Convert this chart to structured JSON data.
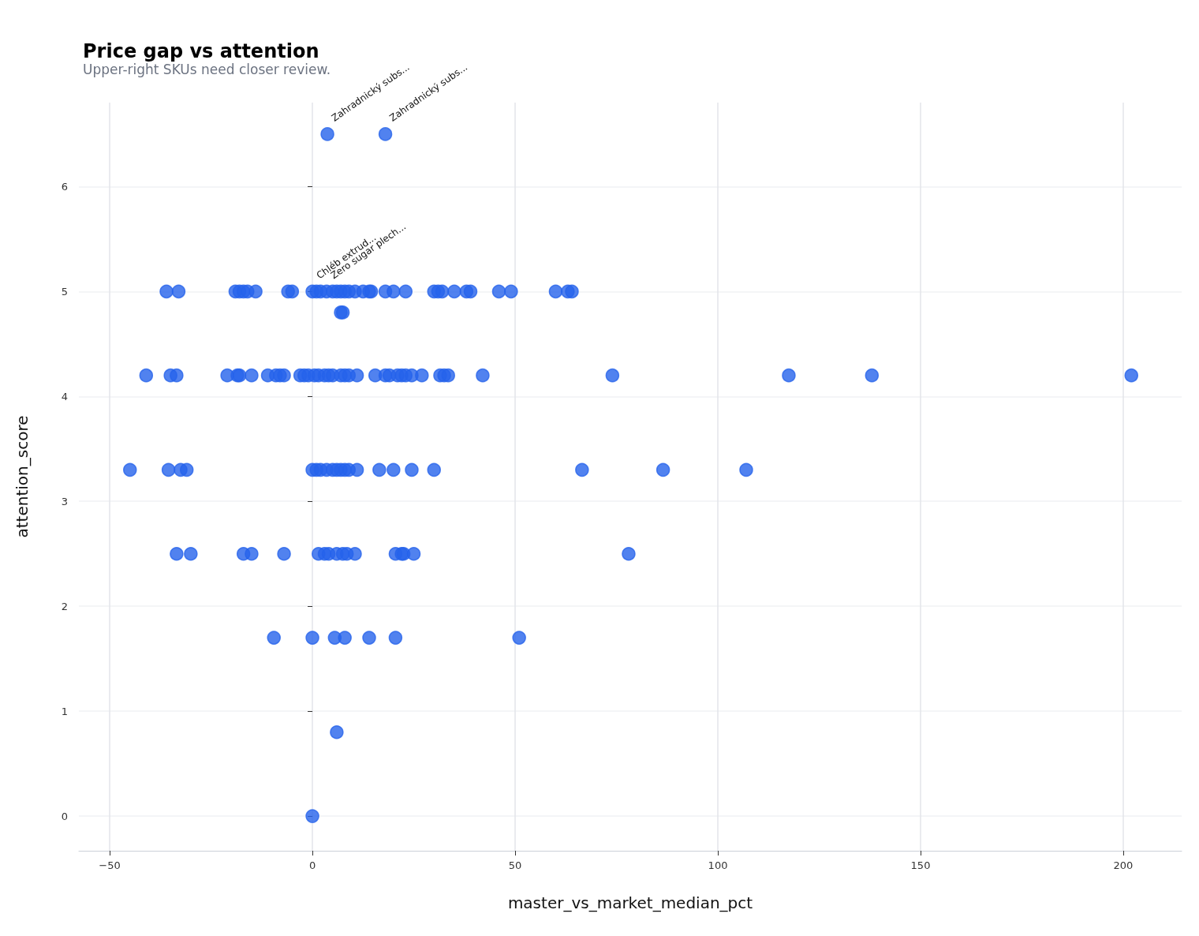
{
  "chart_data": {
    "type": "scatter",
    "title": "Price gap vs attention",
    "subtitle": "Upper-right SKUs need closer review.",
    "xlabel": "master_vs_market_median_pct",
    "ylabel": "attention_score",
    "xlim": [
      -57.6,
      214.4
    ],
    "ylim": [
      -0.33,
      6.8
    ],
    "xticks": [
      -50,
      0,
      50,
      100,
      150,
      200
    ],
    "yticks": [
      0,
      1,
      2,
      3,
      4,
      5,
      6
    ],
    "grid": true,
    "marker": "circle",
    "series": [
      {
        "color": "#2563eb",
        "x": [
          3.7,
          18,
          -36,
          -33,
          -19,
          -18,
          -17,
          -16,
          -14,
          -6,
          -5,
          0,
          1,
          2,
          3.5,
          5,
          6,
          7,
          8,
          9,
          10.5,
          12.5,
          14,
          14.5,
          18,
          20,
          23,
          30,
          31,
          32,
          35,
          38,
          39,
          46,
          49,
          60,
          63,
          64,
          7,
          7.5,
          -41,
          -35,
          -33.5,
          -21,
          -18.5,
          -18,
          -15,
          -11,
          -9,
          -8,
          -7,
          -3,
          -2,
          -1,
          0.5,
          1.5,
          3,
          4,
          5,
          7,
          8,
          9,
          11,
          15.5,
          18,
          19,
          21,
          22,
          23,
          24.5,
          27,
          31.5,
          32.5,
          33.5,
          42,
          74,
          117.5,
          138,
          202,
          -45,
          -35.5,
          -32.5,
          -31,
          0,
          1,
          2,
          3.5,
          5,
          6,
          7,
          8,
          9,
          11,
          16.5,
          20,
          24.5,
          30,
          66.5,
          86.5,
          107,
          -33.5,
          -30,
          -17,
          -15,
          -7,
          1.5,
          3,
          4,
          6,
          7.5,
          8.5,
          10.5,
          20.5,
          22,
          22.5,
          25,
          78,
          -9.5,
          0,
          5.5,
          8,
          14,
          20.5,
          51,
          6,
          0
        ],
        "values": [
          6.5,
          6.5,
          5,
          5,
          5,
          5,
          5,
          5,
          5,
          5,
          5,
          5,
          5,
          5,
          5,
          5,
          5,
          5,
          5,
          5,
          5,
          5,
          5,
          5,
          5,
          5,
          5,
          5,
          5,
          5,
          5,
          5,
          5,
          5,
          5,
          5,
          5,
          5,
          4.8,
          4.8,
          4.2,
          4.2,
          4.2,
          4.2,
          4.2,
          4.2,
          4.2,
          4.2,
          4.2,
          4.2,
          4.2,
          4.2,
          4.2,
          4.2,
          4.2,
          4.2,
          4.2,
          4.2,
          4.2,
          4.2,
          4.2,
          4.2,
          4.2,
          4.2,
          4.2,
          4.2,
          4.2,
          4.2,
          4.2,
          4.2,
          4.2,
          4.2,
          4.2,
          4.2,
          4.2,
          4.2,
          4.2,
          4.2,
          4.2,
          3.3,
          3.3,
          3.3,
          3.3,
          3.3,
          3.3,
          3.3,
          3.3,
          3.3,
          3.3,
          3.3,
          3.3,
          3.3,
          3.3,
          3.3,
          3.3,
          3.3,
          3.3,
          3.3,
          3.3,
          3.3,
          2.5,
          2.5,
          2.5,
          2.5,
          2.5,
          2.5,
          2.5,
          2.5,
          2.5,
          2.5,
          2.5,
          2.5,
          2.5,
          2.5,
          2.5,
          2.5,
          2.5,
          1.7,
          1.7,
          1.7,
          1.7,
          1.7,
          1.7,
          1.7,
          0.8,
          0
        ]
      }
    ],
    "annotations": [
      {
        "text": "Zahradnický subs...",
        "x": 3.7,
        "y": 6.5
      },
      {
        "text": "Zahradnický subs...",
        "x": 18,
        "y": 6.5
      },
      {
        "text": "Chléb extrud...",
        "x": 0,
        "y": 5
      },
      {
        "text": "Zero sugar plech...",
        "x": 3.5,
        "y": 5
      }
    ]
  }
}
